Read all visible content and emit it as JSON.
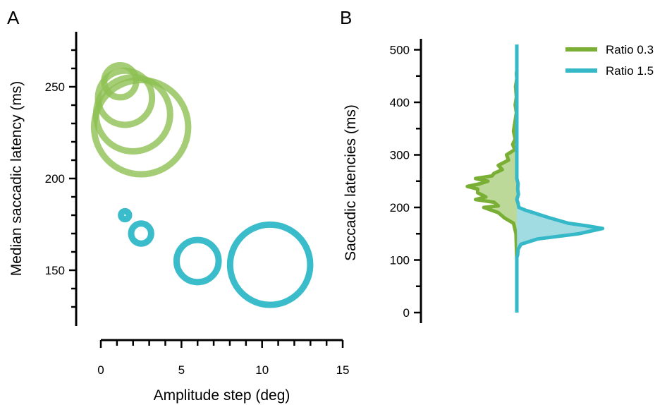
{
  "chart_data": [
    {
      "panel": "A",
      "type": "scatter",
      "xlabel": "Amplitude step (deg)",
      "ylabel": "Median saccadic latency (ms)",
      "xlim": [
        0,
        15
      ],
      "ylim": [
        125,
        277
      ],
      "xticks": [
        0,
        5,
        10,
        15
      ],
      "yticks": [
        150,
        200,
        250
      ],
      "grid": false,
      "marker": "open circle, area encodes additional variable",
      "series": [
        {
          "color": "#8dc152",
          "points": [
            {
              "x": 1.2,
              "y": 253,
              "size": 16
            },
            {
              "x": 1.5,
              "y": 244,
              "size": 27
            },
            {
              "x": 2.0,
              "y": 235,
              "size": 37
            },
            {
              "x": 2.5,
              "y": 228,
              "size": 47
            }
          ]
        },
        {
          "color": "#3bbccb",
          "points": [
            {
              "x": 1.5,
              "y": 180,
              "size": 4
            },
            {
              "x": 2.5,
              "y": 170,
              "size": 10
            },
            {
              "x": 6.0,
              "y": 155,
              "size": 21
            },
            {
              "x": 10.5,
              "y": 153,
              "size": 40
            }
          ]
        }
      ]
    },
    {
      "panel": "B",
      "type": "area",
      "orientation": "horizontal density, mirrored left/right",
      "ylabel": "Saccadic latencies (ms)",
      "ylim": [
        0,
        510
      ],
      "yticks": [
        0,
        100,
        200,
        300,
        400,
        500
      ],
      "grid": false,
      "legend_position": "top-right",
      "series": [
        {
          "name": "Ratio 0.3",
          "side": "left",
          "color": "#7aaf35",
          "fill": "#b6d58e",
          "profile": [
            [
              100,
              0
            ],
            [
              150,
              2
            ],
            [
              170,
              8
            ],
            [
              180,
              30
            ],
            [
              190,
              45
            ],
            [
              200,
              80
            ],
            [
              203,
              45
            ],
            [
              210,
              55
            ],
            [
              215,
              100
            ],
            [
              220,
              75
            ],
            [
              228,
              95
            ],
            [
              235,
              95
            ],
            [
              240,
              120
            ],
            [
              245,
              90
            ],
            [
              250,
              70
            ],
            [
              255,
              100
            ],
            [
              260,
              60
            ],
            [
              265,
              55
            ],
            [
              272,
              35
            ],
            [
              280,
              45
            ],
            [
              290,
              20
            ],
            [
              300,
              25
            ],
            [
              310,
              5
            ],
            [
              320,
              10
            ],
            [
              330,
              4
            ],
            [
              345,
              8
            ],
            [
              360,
              5
            ],
            [
              370,
              3
            ],
            [
              380,
              1
            ],
            [
              395,
              4
            ],
            [
              410,
              1
            ],
            [
              430,
              3
            ],
            [
              445,
              0
            ],
            [
              455,
              1
            ],
            [
              460,
              0
            ]
          ]
        },
        {
          "name": "Ratio 1.5",
          "side": "right",
          "color": "#35b8c8",
          "fill": "#98d8e0",
          "profile": [
            [
              0,
              0
            ],
            [
              105,
              0
            ],
            [
              110,
              2
            ],
            [
              120,
              3
            ],
            [
              130,
              10
            ],
            [
              140,
              50
            ],
            [
              150,
              150
            ],
            [
              160,
              208
            ],
            [
              165,
              170
            ],
            [
              170,
              125
            ],
            [
              180,
              80
            ],
            [
              190,
              40
            ],
            [
              195,
              20
            ],
            [
              200,
              5
            ],
            [
              208,
              3
            ],
            [
              215,
              0
            ],
            [
              225,
              4
            ],
            [
              235,
              2
            ],
            [
              245,
              3
            ],
            [
              255,
              0
            ],
            [
              510,
              0
            ]
          ]
        }
      ]
    }
  ],
  "labels": {
    "panel_a": "A",
    "panel_b": "B"
  }
}
